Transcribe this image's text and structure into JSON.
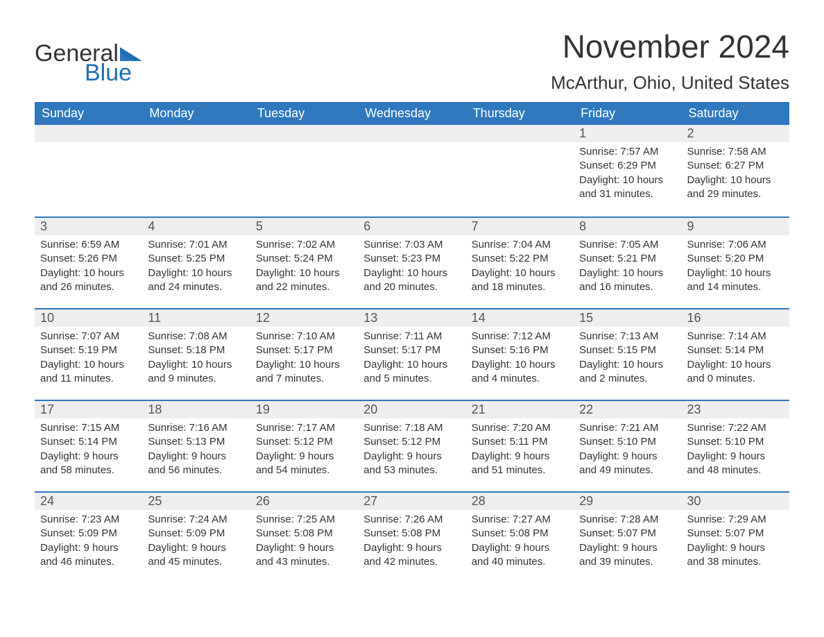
{
  "logo": {
    "general": "General",
    "blue": "Blue"
  },
  "title": "November 2024",
  "location": "McArthur, Ohio, United States",
  "colors": {
    "header_bg": "#2f78bd",
    "header_text": "#ffffff",
    "daynum_bg": "#eeeeee",
    "daynum_border": "#2f78bd",
    "text": "#333333",
    "logo_blue": "#1f6fb2"
  },
  "day_headers": [
    "Sunday",
    "Monday",
    "Tuesday",
    "Wednesday",
    "Thursday",
    "Friday",
    "Saturday"
  ],
  "weeks": [
    [
      null,
      null,
      null,
      null,
      null,
      {
        "n": "1",
        "sr": "Sunrise: 7:57 AM",
        "ss": "Sunset: 6:29 PM",
        "d1": "Daylight: 10 hours",
        "d2": "and 31 minutes."
      },
      {
        "n": "2",
        "sr": "Sunrise: 7:58 AM",
        "ss": "Sunset: 6:27 PM",
        "d1": "Daylight: 10 hours",
        "d2": "and 29 minutes."
      }
    ],
    [
      {
        "n": "3",
        "sr": "Sunrise: 6:59 AM",
        "ss": "Sunset: 5:26 PM",
        "d1": "Daylight: 10 hours",
        "d2": "and 26 minutes."
      },
      {
        "n": "4",
        "sr": "Sunrise: 7:01 AM",
        "ss": "Sunset: 5:25 PM",
        "d1": "Daylight: 10 hours",
        "d2": "and 24 minutes."
      },
      {
        "n": "5",
        "sr": "Sunrise: 7:02 AM",
        "ss": "Sunset: 5:24 PM",
        "d1": "Daylight: 10 hours",
        "d2": "and 22 minutes."
      },
      {
        "n": "6",
        "sr": "Sunrise: 7:03 AM",
        "ss": "Sunset: 5:23 PM",
        "d1": "Daylight: 10 hours",
        "d2": "and 20 minutes."
      },
      {
        "n": "7",
        "sr": "Sunrise: 7:04 AM",
        "ss": "Sunset: 5:22 PM",
        "d1": "Daylight: 10 hours",
        "d2": "and 18 minutes."
      },
      {
        "n": "8",
        "sr": "Sunrise: 7:05 AM",
        "ss": "Sunset: 5:21 PM",
        "d1": "Daylight: 10 hours",
        "d2": "and 16 minutes."
      },
      {
        "n": "9",
        "sr": "Sunrise: 7:06 AM",
        "ss": "Sunset: 5:20 PM",
        "d1": "Daylight: 10 hours",
        "d2": "and 14 minutes."
      }
    ],
    [
      {
        "n": "10",
        "sr": "Sunrise: 7:07 AM",
        "ss": "Sunset: 5:19 PM",
        "d1": "Daylight: 10 hours",
        "d2": "and 11 minutes."
      },
      {
        "n": "11",
        "sr": "Sunrise: 7:08 AM",
        "ss": "Sunset: 5:18 PM",
        "d1": "Daylight: 10 hours",
        "d2": "and 9 minutes."
      },
      {
        "n": "12",
        "sr": "Sunrise: 7:10 AM",
        "ss": "Sunset: 5:17 PM",
        "d1": "Daylight: 10 hours",
        "d2": "and 7 minutes."
      },
      {
        "n": "13",
        "sr": "Sunrise: 7:11 AM",
        "ss": "Sunset: 5:17 PM",
        "d1": "Daylight: 10 hours",
        "d2": "and 5 minutes."
      },
      {
        "n": "14",
        "sr": "Sunrise: 7:12 AM",
        "ss": "Sunset: 5:16 PM",
        "d1": "Daylight: 10 hours",
        "d2": "and 4 minutes."
      },
      {
        "n": "15",
        "sr": "Sunrise: 7:13 AM",
        "ss": "Sunset: 5:15 PM",
        "d1": "Daylight: 10 hours",
        "d2": "and 2 minutes."
      },
      {
        "n": "16",
        "sr": "Sunrise: 7:14 AM",
        "ss": "Sunset: 5:14 PM",
        "d1": "Daylight: 10 hours",
        "d2": "and 0 minutes."
      }
    ],
    [
      {
        "n": "17",
        "sr": "Sunrise: 7:15 AM",
        "ss": "Sunset: 5:14 PM",
        "d1": "Daylight: 9 hours",
        "d2": "and 58 minutes."
      },
      {
        "n": "18",
        "sr": "Sunrise: 7:16 AM",
        "ss": "Sunset: 5:13 PM",
        "d1": "Daylight: 9 hours",
        "d2": "and 56 minutes."
      },
      {
        "n": "19",
        "sr": "Sunrise: 7:17 AM",
        "ss": "Sunset: 5:12 PM",
        "d1": "Daylight: 9 hours",
        "d2": "and 54 minutes."
      },
      {
        "n": "20",
        "sr": "Sunrise: 7:18 AM",
        "ss": "Sunset: 5:12 PM",
        "d1": "Daylight: 9 hours",
        "d2": "and 53 minutes."
      },
      {
        "n": "21",
        "sr": "Sunrise: 7:20 AM",
        "ss": "Sunset: 5:11 PM",
        "d1": "Daylight: 9 hours",
        "d2": "and 51 minutes."
      },
      {
        "n": "22",
        "sr": "Sunrise: 7:21 AM",
        "ss": "Sunset: 5:10 PM",
        "d1": "Daylight: 9 hours",
        "d2": "and 49 minutes."
      },
      {
        "n": "23",
        "sr": "Sunrise: 7:22 AM",
        "ss": "Sunset: 5:10 PM",
        "d1": "Daylight: 9 hours",
        "d2": "and 48 minutes."
      }
    ],
    [
      {
        "n": "24",
        "sr": "Sunrise: 7:23 AM",
        "ss": "Sunset: 5:09 PM",
        "d1": "Daylight: 9 hours",
        "d2": "and 46 minutes."
      },
      {
        "n": "25",
        "sr": "Sunrise: 7:24 AM",
        "ss": "Sunset: 5:09 PM",
        "d1": "Daylight: 9 hours",
        "d2": "and 45 minutes."
      },
      {
        "n": "26",
        "sr": "Sunrise: 7:25 AM",
        "ss": "Sunset: 5:08 PM",
        "d1": "Daylight: 9 hours",
        "d2": "and 43 minutes."
      },
      {
        "n": "27",
        "sr": "Sunrise: 7:26 AM",
        "ss": "Sunset: 5:08 PM",
        "d1": "Daylight: 9 hours",
        "d2": "and 42 minutes."
      },
      {
        "n": "28",
        "sr": "Sunrise: 7:27 AM",
        "ss": "Sunset: 5:08 PM",
        "d1": "Daylight: 9 hours",
        "d2": "and 40 minutes."
      },
      {
        "n": "29",
        "sr": "Sunrise: 7:28 AM",
        "ss": "Sunset: 5:07 PM",
        "d1": "Daylight: 9 hours",
        "d2": "and 39 minutes."
      },
      {
        "n": "30",
        "sr": "Sunrise: 7:29 AM",
        "ss": "Sunset: 5:07 PM",
        "d1": "Daylight: 9 hours",
        "d2": "and 38 minutes."
      }
    ]
  ]
}
